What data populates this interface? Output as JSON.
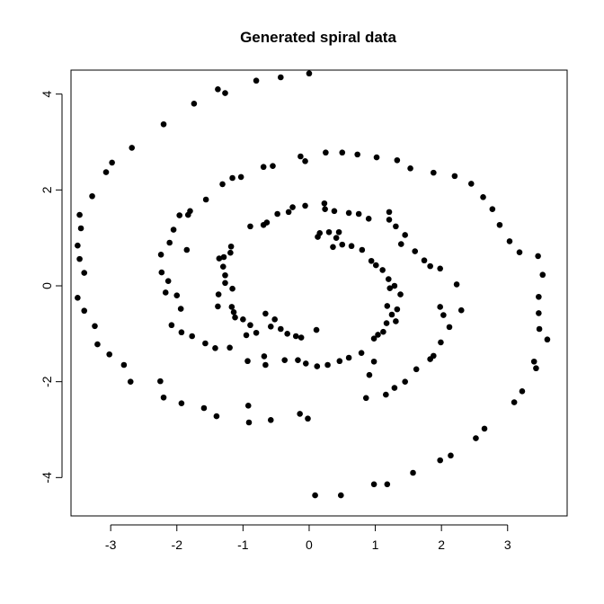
{
  "chart_data": {
    "type": "scatter",
    "title": "Generated spiral data",
    "xlabel": "",
    "ylabel": "",
    "xlim": [
      -3.6,
      3.9
    ],
    "ylim": [
      -4.8,
      4.5
    ],
    "x_ticks": [
      -3,
      -2,
      -1,
      0,
      1,
      2,
      3
    ],
    "y_ticks": [
      -4,
      -2,
      0,
      2,
      4
    ],
    "grid": false,
    "series": [
      {
        "points": [
          [
            0.0,
            4.43
          ],
          [
            -0.43,
            4.35
          ],
          [
            -0.8,
            4.28
          ],
          [
            -1.38,
            4.1
          ],
          [
            -1.27,
            4.02
          ],
          [
            -1.74,
            3.8
          ],
          [
            -2.2,
            3.37
          ],
          [
            -2.68,
            2.88
          ],
          [
            -2.98,
            2.57
          ],
          [
            -3.07,
            2.37
          ],
          [
            -3.28,
            1.87
          ],
          [
            -3.47,
            1.48
          ],
          [
            -3.45,
            1.2
          ],
          [
            -3.5,
            0.84
          ],
          [
            -3.47,
            0.56
          ],
          [
            -3.4,
            0.27
          ],
          [
            -3.5,
            -0.25
          ],
          [
            -3.4,
            -0.52
          ],
          [
            -3.24,
            -0.84
          ],
          [
            -3.2,
            -1.22
          ],
          [
            -3.02,
            -1.43
          ],
          [
            -2.8,
            -1.65
          ],
          [
            -2.7,
            -2.0
          ],
          [
            -2.25,
            -1.99
          ],
          [
            -2.2,
            -2.33
          ],
          [
            -1.93,
            -2.45
          ],
          [
            -1.59,
            -2.55
          ],
          [
            -1.4,
            -2.72
          ],
          [
            -0.92,
            -2.5
          ],
          [
            -0.91,
            -2.85
          ],
          [
            -0.58,
            -2.8
          ],
          [
            -0.14,
            -2.67
          ],
          [
            -0.02,
            -2.77
          ],
          [
            0.09,
            -4.37
          ],
          [
            0.48,
            -4.37
          ],
          [
            0.98,
            -4.14
          ],
          [
            1.18,
            -4.14
          ],
          [
            1.57,
            -3.9
          ],
          [
            1.98,
            -3.64
          ],
          [
            2.14,
            -3.54
          ],
          [
            2.52,
            -3.18
          ],
          [
            2.65,
            -2.98
          ],
          [
            3.1,
            -2.43
          ],
          [
            3.22,
            -2.2
          ],
          [
            3.4,
            -1.58
          ],
          [
            3.43,
            -1.72
          ],
          [
            3.6,
            -1.12
          ],
          [
            3.48,
            -0.9
          ],
          [
            3.47,
            -0.57
          ],
          [
            3.47,
            -0.23
          ],
          [
            3.53,
            0.23
          ],
          [
            3.46,
            0.62
          ],
          [
            3.18,
            0.7
          ],
          [
            3.03,
            0.93
          ],
          [
            2.88,
            1.27
          ],
          [
            2.77,
            1.6
          ],
          [
            2.63,
            1.85
          ],
          [
            2.45,
            2.13
          ],
          [
            2.2,
            2.29
          ],
          [
            1.88,
            2.36
          ],
          [
            1.53,
            2.45
          ],
          [
            1.33,
            2.62
          ],
          [
            1.02,
            2.68
          ],
          [
            0.73,
            2.74
          ],
          [
            0.5,
            2.78
          ],
          [
            0.25,
            2.78
          ],
          [
            -0.13,
            2.7
          ],
          [
            -0.06,
            2.6
          ],
          [
            -0.55,
            2.5
          ],
          [
            -0.69,
            2.48
          ],
          [
            -1.03,
            2.27
          ],
          [
            -1.16,
            2.25
          ],
          [
            -1.31,
            2.12
          ],
          [
            -1.56,
            1.8
          ],
          [
            -1.8,
            1.56
          ],
          [
            -1.83,
            1.48
          ],
          [
            -1.96,
            1.47
          ],
          [
            -2.05,
            1.17
          ],
          [
            -2.11,
            0.9
          ],
          [
            -1.85,
            0.75
          ],
          [
            -2.24,
            0.65
          ],
          [
            -2.23,
            0.28
          ],
          [
            -2.13,
            0.1
          ],
          [
            -2.17,
            -0.14
          ],
          [
            -2.0,
            -0.2
          ],
          [
            -1.94,
            -0.48
          ],
          [
            -2.08,
            -0.82
          ],
          [
            -1.93,
            -0.97
          ],
          [
            -1.77,
            -1.05
          ],
          [
            -1.57,
            -1.2
          ],
          [
            -1.42,
            -1.3
          ],
          [
            -1.2,
            -1.29
          ],
          [
            -0.93,
            -1.57
          ],
          [
            -0.68,
            -1.47
          ],
          [
            -0.66,
            -1.65
          ],
          [
            -0.37,
            -1.55
          ],
          [
            -0.17,
            -1.55
          ],
          [
            -0.05,
            -1.62
          ],
          [
            0.12,
            -1.68
          ],
          [
            0.28,
            -1.65
          ],
          [
            0.46,
            -1.57
          ],
          [
            0.6,
            -1.5
          ],
          [
            0.79,
            -1.4
          ],
          [
            0.98,
            -1.58
          ],
          [
            0.91,
            -1.86
          ],
          [
            0.86,
            -2.34
          ],
          [
            1.16,
            -2.27
          ],
          [
            1.29,
            -2.13
          ],
          [
            1.45,
            -2.0
          ],
          [
            1.62,
            -1.74
          ],
          [
            1.83,
            -1.53
          ],
          [
            1.88,
            -1.46
          ],
          [
            1.99,
            -1.18
          ],
          [
            2.12,
            -0.86
          ],
          [
            2.03,
            -0.61
          ],
          [
            2.3,
            -0.51
          ],
          [
            1.98,
            -0.44
          ],
          [
            2.23,
            0.03
          ],
          [
            1.98,
            0.36
          ],
          [
            1.83,
            0.41
          ],
          [
            1.74,
            0.53
          ],
          [
            1.6,
            0.72
          ],
          [
            1.39,
            0.87
          ],
          [
            1.45,
            1.06
          ],
          [
            1.31,
            1.24
          ],
          [
            1.21,
            1.38
          ],
          [
            1.21,
            1.54
          ],
          [
            0.9,
            1.4
          ],
          [
            0.75,
            1.5
          ],
          [
            0.6,
            1.52
          ],
          [
            0.38,
            1.56
          ],
          [
            0.24,
            1.6
          ],
          [
            0.23,
            1.72
          ],
          [
            -0.06,
            1.67
          ],
          [
            -0.25,
            1.64
          ],
          [
            -0.31,
            1.54
          ],
          [
            -0.48,
            1.5
          ],
          [
            -0.64,
            1.32
          ],
          [
            -0.69,
            1.27
          ],
          [
            -0.89,
            1.24
          ],
          [
            -1.18,
            0.82
          ],
          [
            -1.19,
            0.69
          ],
          [
            -1.29,
            0.6
          ],
          [
            -1.36,
            0.57
          ],
          [
            -1.3,
            0.4
          ],
          [
            -1.27,
            0.22
          ],
          [
            -1.27,
            0.06
          ],
          [
            -1.16,
            -0.06
          ],
          [
            -1.37,
            -0.18
          ],
          [
            -1.38,
            -0.43
          ],
          [
            -1.17,
            -0.44
          ],
          [
            -1.12,
            -0.66
          ],
          [
            -1.0,
            -0.7
          ],
          [
            -0.89,
            -0.82
          ],
          [
            -0.66,
            -0.58
          ],
          [
            -0.58,
            -0.85
          ],
          [
            -0.52,
            -0.7
          ],
          [
            -0.43,
            -0.9
          ],
          [
            -0.33,
            -1.0
          ],
          [
            -0.2,
            -1.05
          ],
          [
            -0.12,
            -1.08
          ],
          [
            0.11,
            -0.92
          ],
          [
            0.13,
            1.02
          ],
          [
            0.16,
            1.1
          ],
          [
            0.3,
            1.12
          ],
          [
            0.45,
            1.12
          ],
          [
            0.41,
            1.0
          ],
          [
            0.36,
            0.81
          ],
          [
            0.5,
            0.86
          ],
          [
            0.64,
            0.83
          ],
          [
            0.8,
            0.75
          ],
          [
            0.94,
            0.52
          ],
          [
            1.01,
            0.43
          ],
          [
            1.11,
            0.33
          ],
          [
            1.2,
            0.14
          ],
          [
            1.29,
            0.0
          ],
          [
            1.22,
            -0.05
          ],
          [
            1.38,
            -0.18
          ],
          [
            1.33,
            -0.49
          ],
          [
            1.25,
            -0.6
          ],
          [
            1.18,
            -0.42
          ],
          [
            1.31,
            -0.74
          ],
          [
            1.17,
            -0.78
          ],
          [
            1.12,
            -0.96
          ],
          [
            1.04,
            -1.02
          ],
          [
            0.98,
            -1.1
          ],
          [
            -0.95,
            -1.03
          ],
          [
            -1.14,
            -0.55
          ],
          [
            -0.8,
            -0.98
          ]
        ]
      }
    ]
  }
}
